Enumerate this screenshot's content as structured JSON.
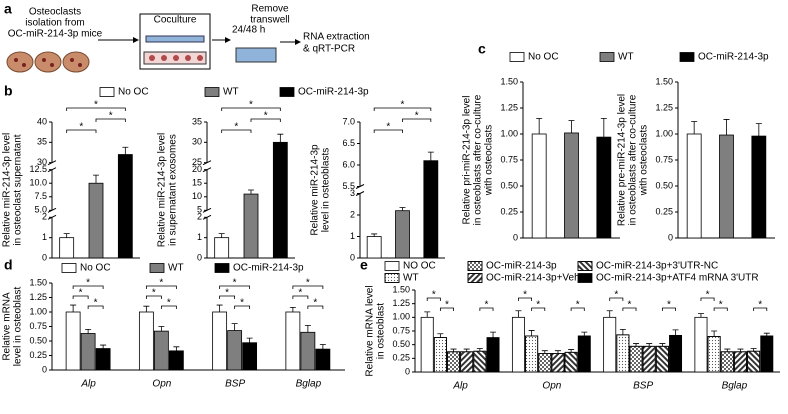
{
  "diagram": {
    "panel": "a",
    "source": [
      "Osteoclasts",
      "isolation from",
      "OC-miR-214-3p mice"
    ],
    "coculture": "Coculture",
    "time": "24/48 h",
    "remove": [
      "Remove",
      "transwell"
    ],
    "analysis": [
      "RNA extraction",
      "& qRT-PCR"
    ]
  },
  "chart_data": [
    {
      "panel": "b",
      "type": "bar",
      "legend": [
        {
          "name": "No OC",
          "color": "#ffffff"
        },
        {
          "name": "WT",
          "color": "#7f7f7f"
        },
        {
          "name": "OC-miR-214-3p",
          "color": "#000000"
        }
      ],
      "subplots": [
        {
          "ylabel": [
            "Relative miR-214-3p level",
            "in osteoclast supernatant"
          ],
          "values": [
            1,
            10,
            32
          ],
          "errors": [
            0.2,
            1.5,
            1.8
          ],
          "ysegments": [
            [
              0,
              2
            ],
            [
              5,
              12.5
            ],
            [
              30,
              40
            ]
          ],
          "yticks": [
            0,
            1,
            2,
            {
              "value": 5,
              "label": "5.0"
            },
            7.5,
            {
              "value": 10,
              "label": "10.0"
            },
            12.5,
            30,
            35,
            40
          ],
          "significance": [
            "*",
            "*",
            "*"
          ]
        },
        {
          "ylabel": [
            "Relative miR-214-3p level",
            "in supernatant exosomes"
          ],
          "values": [
            1,
            11,
            30
          ],
          "errors": [
            0.2,
            1.5,
            2
          ],
          "ysegments": [
            [
              0,
              2
            ],
            [
              5,
              20
            ],
            [
              25,
              35
            ]
          ],
          "yticks": [
            0,
            1,
            2,
            5,
            10,
            15,
            20,
            25,
            30,
            35
          ],
          "significance": [
            "*",
            "*",
            "*"
          ]
        },
        {
          "ylabel": [
            "Relative miR-214-3p",
            "level in osteoblasts"
          ],
          "values": [
            1,
            2.2,
            6.1
          ],
          "errors": [
            0.12,
            0.15,
            0.2
          ],
          "ysegments": [
            [
              0,
              3
            ],
            [
              5.5,
              7
            ]
          ],
          "yticks": [
            0,
            1,
            2,
            3,
            5.5,
            {
              "value": 6,
              "label": "6.0"
            },
            6.5,
            {
              "value": 7,
              "label": "7.0"
            }
          ],
          "significance": [
            "*",
            "*",
            "*"
          ]
        }
      ]
    },
    {
      "panel": "c",
      "type": "bar",
      "legend": [
        {
          "name": "No OC",
          "color": "#ffffff"
        },
        {
          "name": "WT",
          "color": "#7f7f7f"
        },
        {
          "name": "OC-miR-214-3p",
          "color": "#000000"
        }
      ],
      "subplots": [
        {
          "ylabel": [
            "Relative pri-miR-214-3p level",
            "in osteoblasts after co-culture",
            "with osteoclasts"
          ],
          "values": [
            1,
            1.01,
            0.97
          ],
          "errors": [
            0.15,
            0.12,
            0.18
          ],
          "ylim": [
            0,
            1.5
          ],
          "yticks": [
            0,
            0.25,
            {
              "value": 0.5,
              "label": "0.50"
            },
            0.75,
            {
              "value": 1,
              "label": "1.00"
            },
            1.25,
            {
              "value": 1.5,
              "label": "1.50"
            }
          ]
        },
        {
          "ylabel": [
            "Relative pre-miR-214-3p level",
            "in osteoblasts after co-culture",
            "with osteoclasts"
          ],
          "values": [
            1,
            0.99,
            0.98
          ],
          "errors": [
            0.12,
            0.15,
            0.12
          ],
          "ylim": [
            0,
            1.5
          ],
          "yticks": [
            0,
            0.25,
            {
              "value": 0.5,
              "label": "0.50"
            },
            0.75,
            {
              "value": 1,
              "label": "1.00"
            },
            1.25,
            {
              "value": 1.5,
              "label": "1.50"
            }
          ]
        }
      ]
    },
    {
      "panel": "d",
      "type": "grouped_bar",
      "ylabel": [
        "Relative mRNA",
        "level in osteoblast"
      ],
      "categories": [
        "Alp",
        "Opn",
        "BSP",
        "Bglap"
      ],
      "series": [
        {
          "name": "No OC",
          "color": "#ffffff",
          "values": [
            1,
            1,
            1,
            1
          ],
          "errors": [
            0.12,
            0.1,
            0.12,
            0.08
          ]
        },
        {
          "name": "WT",
          "color": "#7f7f7f",
          "values": [
            0.63,
            0.67,
            0.68,
            0.65
          ],
          "errors": [
            0.07,
            0.08,
            0.12,
            0.12
          ]
        },
        {
          "name": "OC-miR-214-3p",
          "color": "#000000",
          "values": [
            0.37,
            0.33,
            0.47,
            0.36
          ],
          "errors": [
            0.06,
            0.07,
            0.08,
            0.08
          ]
        }
      ],
      "ylim": [
        0,
        1.5
      ],
      "yticks": [
        0,
        0.25,
        {
          "value": 0.5,
          "label": "0.50"
        },
        0.75,
        {
          "value": 1,
          "label": "1.00"
        },
        1.25,
        {
          "value": 1.5,
          "label": "1.50"
        }
      ],
      "significance": [
        [
          "*",
          "*",
          "*"
        ],
        [
          "*",
          "*",
          "*"
        ],
        [
          "*",
          "*",
          "*"
        ],
        [
          "*",
          "*",
          "*"
        ]
      ]
    },
    {
      "panel": "e",
      "type": "grouped_bar",
      "ylabel": [
        "Relative mRNA level",
        "in osteoblast"
      ],
      "categories": [
        "Alp",
        "Opn",
        "BSP",
        "Bglap"
      ],
      "series": [
        {
          "name": "NO OC",
          "color": "#ffffff",
          "pattern": "none",
          "values": [
            1,
            1,
            1,
            1
          ],
          "errors": [
            0.1,
            0.12,
            0.12,
            0.07
          ]
        },
        {
          "name": "WT",
          "color": "#ffffff",
          "pattern": "dots",
          "values": [
            0.63,
            0.66,
            0.68,
            0.65
          ],
          "errors": [
            0.07,
            0.1,
            0.1,
            0.1
          ]
        },
        {
          "name": "OC-miR-214-3p",
          "color": "#ffffff",
          "pattern": "checker",
          "values": [
            0.37,
            0.34,
            0.47,
            0.37
          ],
          "errors": [
            0.05,
            0.05,
            0.05,
            0.05
          ]
        },
        {
          "name": "OC-miR-214-3p+Veh",
          "color": "#ffffff",
          "pattern": "hatch",
          "values": [
            0.37,
            0.34,
            0.47,
            0.37
          ],
          "errors": [
            0.05,
            0.05,
            0.05,
            0.05
          ]
        },
        {
          "name": "OC-miR-214-3p+3'UTR-NC",
          "color": "#ffffff",
          "pattern": "hatch2",
          "values": [
            0.38,
            0.36,
            0.47,
            0.38
          ],
          "errors": [
            0.05,
            0.05,
            0.05,
            0.05
          ]
        },
        {
          "name": "OC-miR-214-3p+ATF4 mRNA 3'UTR",
          "color": "#000000",
          "pattern": "none",
          "values": [
            0.63,
            0.66,
            0.67,
            0.66
          ],
          "errors": [
            0.1,
            0.07,
            0.1,
            0.05
          ]
        }
      ],
      "ylim": [
        0,
        1.5
      ],
      "yticks": [
        0,
        0.25,
        {
          "value": 0.5,
          "label": "0.50"
        },
        0.75,
        {
          "value": 1,
          "label": "1.00"
        },
        1.25,
        {
          "value": 1.5,
          "label": "1.50"
        }
      ],
      "significance": [
        [
          "*",
          "*",
          "*"
        ],
        [
          "*",
          "*",
          "*"
        ],
        [
          "*",
          "*",
          "*"
        ],
        [
          "*",
          "*",
          "*"
        ]
      ]
    }
  ]
}
